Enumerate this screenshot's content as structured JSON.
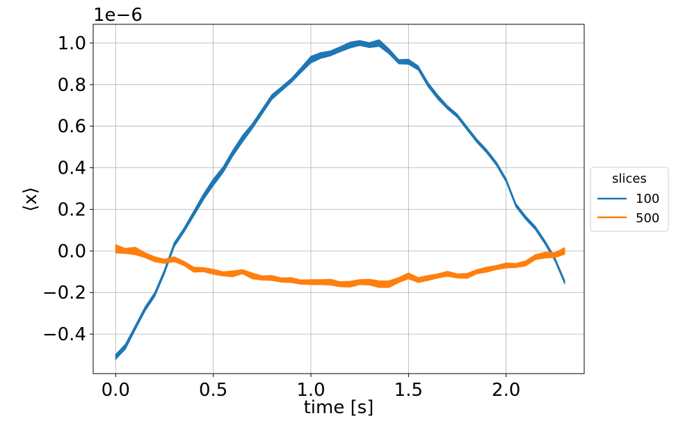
{
  "chart_data": {
    "type": "line",
    "xlabel": "time [s]",
    "ylabel": "⟨x⟩",
    "offset_label": "1e−6",
    "xlim": [
      -0.115,
      2.4
    ],
    "ylim": [
      -0.59,
      1.09
    ],
    "xticks": [
      0.0,
      0.5,
      1.0,
      1.5,
      2.0
    ],
    "xtick_labels": [
      "0.0",
      "0.5",
      "1.0",
      "1.5",
      "2.0"
    ],
    "yticks": [
      -0.4,
      -0.2,
      0.0,
      0.2,
      0.4,
      0.6,
      0.8,
      1.0
    ],
    "ytick_labels": [
      "−0.4",
      "−0.2",
      "0.0",
      "0.2",
      "0.4",
      "0.6",
      "0.8",
      "1.0"
    ],
    "grid": true,
    "legend": {
      "title": "slices",
      "placement": "outside-right",
      "entries": [
        "100",
        "500"
      ]
    },
    "series": [
      {
        "name": "100",
        "color": "#1f77b4",
        "x": [
          0.0,
          0.05,
          0.1,
          0.15,
          0.2,
          0.25,
          0.3,
          0.35,
          0.4,
          0.45,
          0.5,
          0.55,
          0.6,
          0.65,
          0.7,
          0.75,
          0.8,
          0.85,
          0.9,
          0.95,
          1.0,
          1.05,
          1.1,
          1.15,
          1.2,
          1.25,
          1.3,
          1.35,
          1.4,
          1.45,
          1.5,
          1.55,
          1.6,
          1.65,
          1.7,
          1.75,
          1.8,
          1.85,
          1.9,
          1.95,
          2.0,
          2.05,
          2.1,
          2.15,
          2.2,
          2.25,
          2.3
        ],
        "y": [
          -0.51,
          -0.46,
          -0.37,
          -0.28,
          -0.21,
          -0.1,
          0.03,
          0.1,
          0.18,
          0.26,
          0.33,
          0.39,
          0.47,
          0.54,
          0.6,
          0.67,
          0.74,
          0.78,
          0.82,
          0.87,
          0.92,
          0.94,
          0.95,
          0.97,
          0.99,
          1.0,
          0.99,
          1.0,
          0.96,
          0.91,
          0.91,
          0.88,
          0.8,
          0.74,
          0.69,
          0.65,
          0.59,
          0.53,
          0.48,
          0.42,
          0.34,
          0.22,
          0.16,
          0.11,
          0.04,
          -0.04,
          -0.15
        ],
        "band": [
          0.012,
          0.012,
          0.01,
          0.01,
          0.01,
          0.01,
          0.01,
          0.01,
          0.012,
          0.014,
          0.016,
          0.014,
          0.014,
          0.016,
          0.012,
          0.012,
          0.012,
          0.01,
          0.01,
          0.012,
          0.016,
          0.014,
          0.012,
          0.012,
          0.014,
          0.012,
          0.012,
          0.016,
          0.012,
          0.01,
          0.012,
          0.01,
          0.01,
          0.01,
          0.008,
          0.008,
          0.008,
          0.008,
          0.008,
          0.008,
          0.008,
          0.008,
          0.008,
          0.008,
          0.008,
          0.008,
          0.008
        ]
      },
      {
        "name": "500",
        "color": "#ff7f0e",
        "x": [
          0.0,
          0.05,
          0.1,
          0.15,
          0.2,
          0.25,
          0.3,
          0.35,
          0.4,
          0.45,
          0.5,
          0.55,
          0.6,
          0.65,
          0.7,
          0.75,
          0.8,
          0.85,
          0.9,
          0.95,
          1.0,
          1.05,
          1.1,
          1.15,
          1.2,
          1.25,
          1.3,
          1.35,
          1.4,
          1.45,
          1.5,
          1.55,
          1.6,
          1.65,
          1.7,
          1.75,
          1.8,
          1.85,
          1.9,
          1.95,
          2.0,
          2.05,
          2.1,
          2.15,
          2.2,
          2.25,
          2.3
        ],
        "y": [
          0.01,
          0.0,
          0.0,
          -0.02,
          -0.04,
          -0.05,
          -0.04,
          -0.06,
          -0.09,
          -0.09,
          -0.1,
          -0.11,
          -0.11,
          -0.1,
          -0.12,
          -0.13,
          -0.13,
          -0.14,
          -0.14,
          -0.15,
          -0.15,
          -0.15,
          -0.15,
          -0.16,
          -0.16,
          -0.15,
          -0.15,
          -0.16,
          -0.16,
          -0.14,
          -0.12,
          -0.14,
          -0.13,
          -0.12,
          -0.11,
          -0.12,
          -0.12,
          -0.1,
          -0.09,
          -0.08,
          -0.07,
          -0.07,
          -0.06,
          -0.03,
          -0.02,
          -0.02,
          0.0
        ],
        "band": [
          0.02,
          0.012,
          0.018,
          0.012,
          0.012,
          0.01,
          0.012,
          0.01,
          0.012,
          0.01,
          0.012,
          0.01,
          0.014,
          0.01,
          0.014,
          0.01,
          0.012,
          0.01,
          0.012,
          0.01,
          0.012,
          0.012,
          0.014,
          0.012,
          0.014,
          0.012,
          0.014,
          0.016,
          0.016,
          0.012,
          0.014,
          0.012,
          0.012,
          0.01,
          0.012,
          0.01,
          0.012,
          0.01,
          0.012,
          0.01,
          0.012,
          0.01,
          0.012,
          0.012,
          0.014,
          0.012,
          0.016
        ]
      }
    ]
  }
}
